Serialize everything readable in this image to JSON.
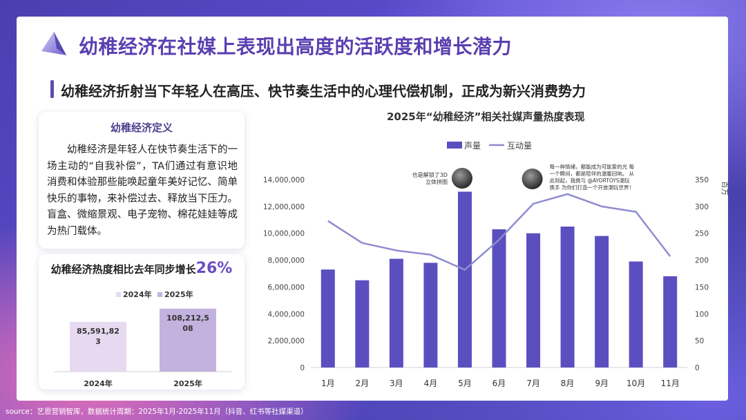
{
  "header": {
    "title": "幼稚经济在社媒上表现出高度的活跃度和增长潜力",
    "subtitle": "幼稚经济折射当下年轻人在高压、快节奏生活中的心理代偿机制，正成为新兴消费势力"
  },
  "definition": {
    "title": "幼稚经济定义",
    "text": "幼稚经济是年轻人在快节奏生活下的一场主动的“自我补偿”，TA们通过有意识地消费和体验那些能唤起童年美好记忆、简单快乐的事物，来补偿过去、释放当下压力。盲盒、微缩景观、电子宠物、棉花娃娃等成为热门载体。"
  },
  "growth": {
    "title_prefix": "幼稚经济热度相比去年同步增长",
    "title_pct": "26%"
  },
  "source": "source：艺恩营销智库，数据统计周期：2025年1月-2025年11月（抖音、红书等社媒渠道）",
  "colors": {
    "bar": "#5b4fbf",
    "line": "#8f8bd0",
    "bar_2024": "#e6d9f0",
    "bar_2025": "#c3b2dd"
  },
  "chart_data": [
    {
      "type": "bar",
      "title": "幼稚经济热度相比去年同步增长26%",
      "categories": [
        "2024年",
        "2025年"
      ],
      "series": [
        {
          "name": "2024年",
          "values": [
            85591823,
            null
          ]
        },
        {
          "name": "2025年",
          "values": [
            null,
            108212508
          ]
        }
      ],
      "data_labels": [
        "85,591,82\n3",
        "108,212,5\n08"
      ],
      "legend": [
        "2024年",
        "2025年"
      ],
      "legend_position": "top",
      "ylim": [
        0,
        140000000
      ],
      "grid": false
    },
    {
      "type": "bar",
      "title": "2025年“幼稚经济”相关社媒声量热度表现",
      "categories": [
        "1月",
        "2月",
        "3月",
        "4月",
        "5月",
        "6月",
        "7月",
        "8月",
        "9月",
        "10月",
        "11月"
      ],
      "series": [
        {
          "name": "声量",
          "type": "bar",
          "axis": "left",
          "values": [
            7300000,
            6500000,
            8100000,
            7800000,
            13100000,
            10300000,
            10000000,
            10500000,
            9800000,
            7900000,
            6800000
          ]
        },
        {
          "name": "互动量",
          "type": "line",
          "axis": "right",
          "values": [
            273,
            232,
            218,
            210,
            182,
            238,
            305,
            323,
            300,
            290,
            207
          ]
        }
      ],
      "ylim_left": [
        0,
        14000000
      ],
      "yticks_left": [
        "0",
        "2,000,000",
        "4,000,000",
        "6,000,000",
        "8,000,000",
        "10,000,000",
        "12,000,000",
        "14,000,000"
      ],
      "ylim_right": [
        0,
        350
      ],
      "yticks_right": [
        "0",
        "50",
        "100",
        "150",
        "200",
        "250",
        "300",
        "350"
      ],
      "right_axis_unit": "百万",
      "legend_position": "top",
      "grid": false,
      "annotations": [
        {
          "month": "5月",
          "text": "也是解锁了3D\n立体拼图"
        },
        {
          "month": "8月",
          "text": "每一种情绪，都能成为可能爱的光 每\n一个瞬间，都是陪伴的温暖回响。 从\n此刻起，我携与 @AYORTOYS潮玩\n携手 为你们打造一个开放潮玩世界！"
        }
      ]
    }
  ]
}
